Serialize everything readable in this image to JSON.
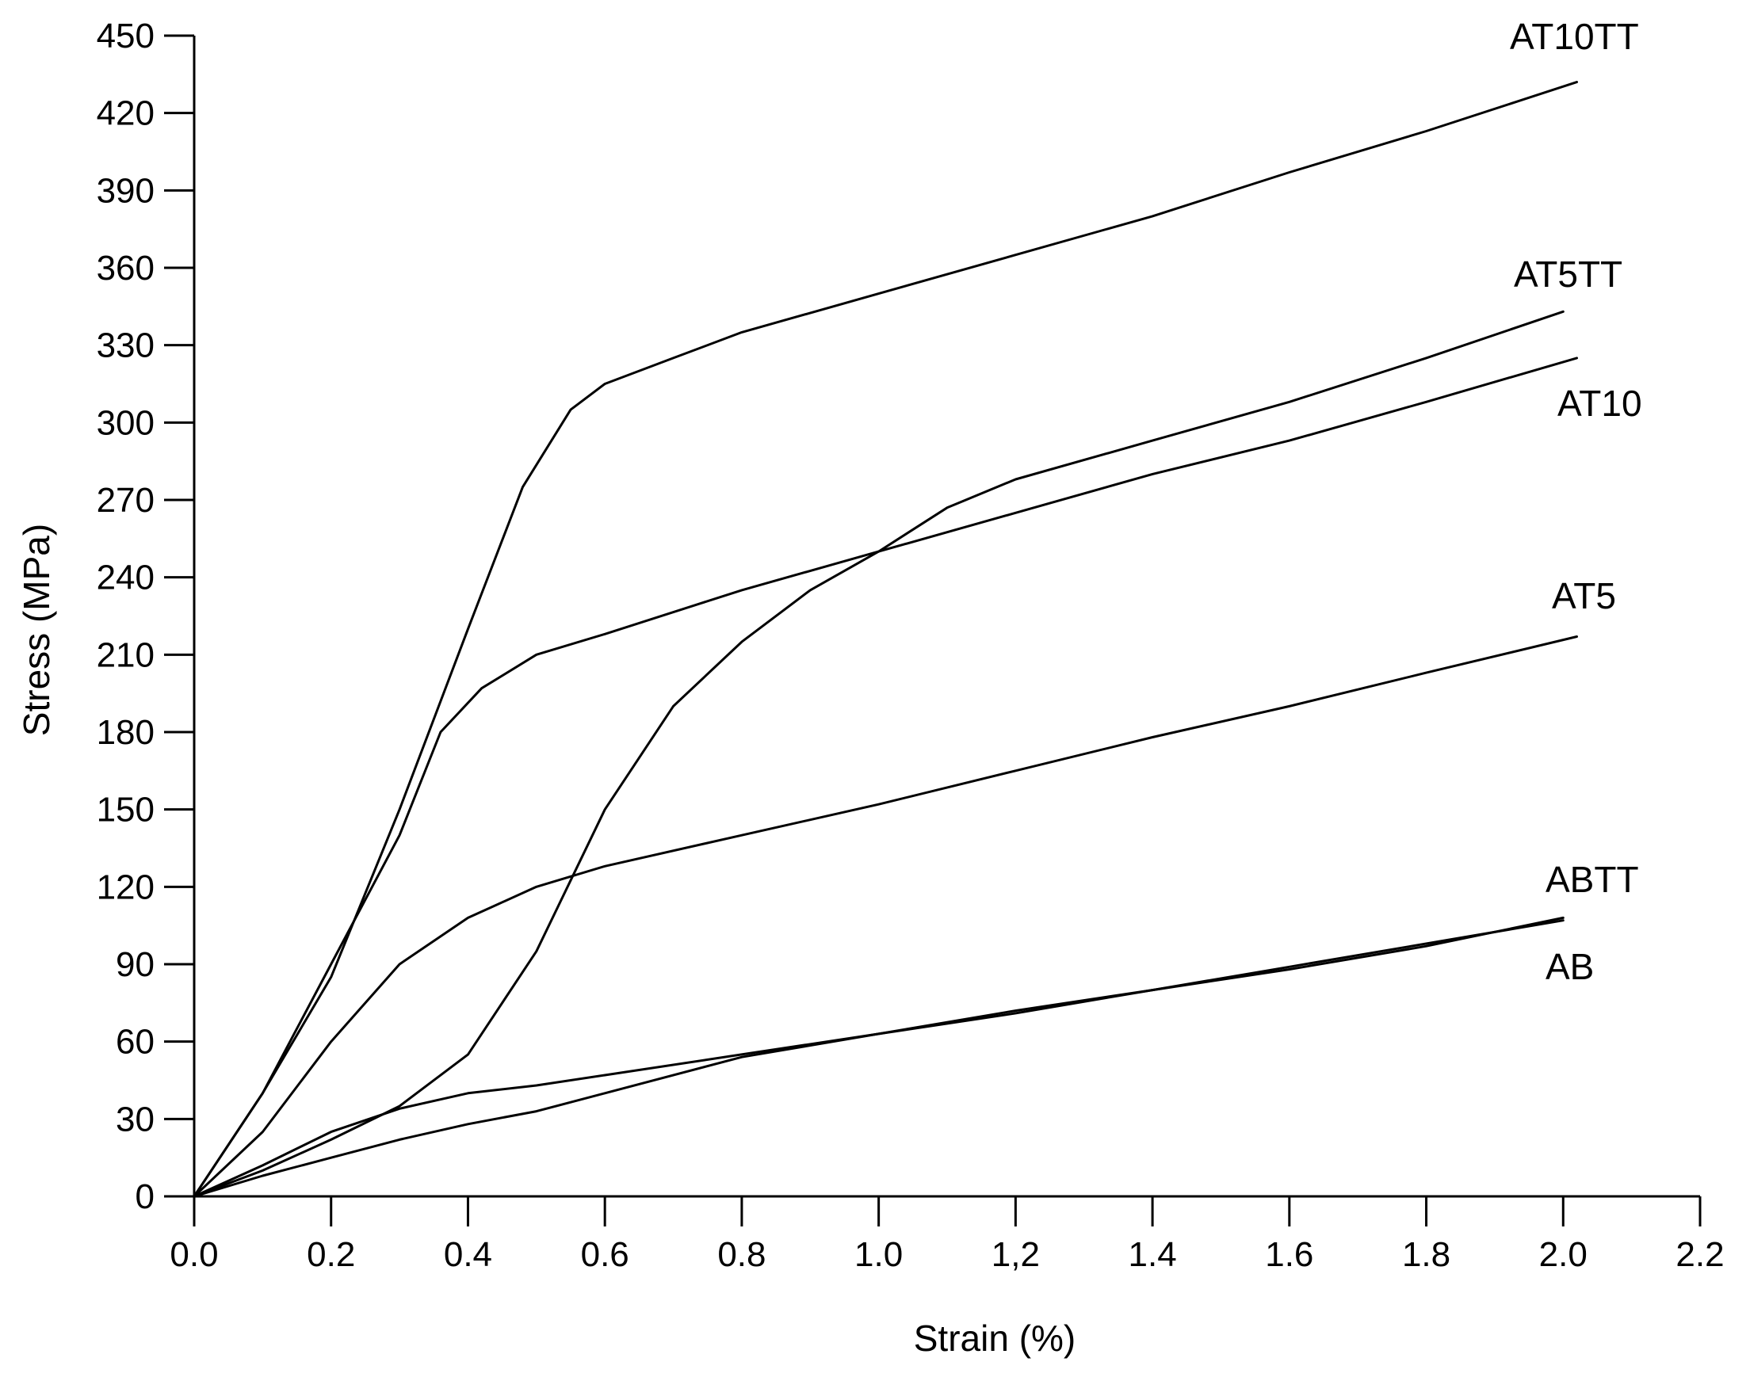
{
  "chart_data": {
    "type": "line",
    "title": "",
    "xlabel": "Strain (%)",
    "ylabel": "Stress (MPa)",
    "xlim": [
      0.0,
      2.2
    ],
    "ylim": [
      0,
      450
    ],
    "grid": false,
    "legend": "none (series labelled at line ends)",
    "line_color": "#000000",
    "x_ticks": [
      {
        "value": 0.0,
        "label": "0.0"
      },
      {
        "value": 0.2,
        "label": "0.2"
      },
      {
        "value": 0.4,
        "label": "0.4"
      },
      {
        "value": 0.6,
        "label": "0.6"
      },
      {
        "value": 0.8,
        "label": "0.8"
      },
      {
        "value": 1.0,
        "label": "1.0"
      },
      {
        "value": 1.2,
        "label": "1,2"
      },
      {
        "value": 1.4,
        "label": "1.4"
      },
      {
        "value": 1.6,
        "label": "1.6"
      },
      {
        "value": 1.8,
        "label": "1.8"
      },
      {
        "value": 2.0,
        "label": "2.0"
      },
      {
        "value": 2.2,
        "label": "2.2"
      }
    ],
    "y_ticks": [
      {
        "value": 0,
        "label": "0"
      },
      {
        "value": 30,
        "label": "30"
      },
      {
        "value": 60,
        "label": "60"
      },
      {
        "value": 90,
        "label": "90"
      },
      {
        "value": 120,
        "label": "120"
      },
      {
        "value": 150,
        "label": "150"
      },
      {
        "value": 180,
        "label": "180"
      },
      {
        "value": 210,
        "label": "210"
      },
      {
        "value": 240,
        "label": "240"
      },
      {
        "value": 270,
        "label": "270"
      },
      {
        "value": 300,
        "label": "300"
      },
      {
        "value": 330,
        "label": "330"
      },
      {
        "value": 360,
        "label": "360"
      },
      {
        "value": 390,
        "label": "390"
      },
      {
        "value": 420,
        "label": "420"
      },
      {
        "value": 450,
        "label": "450"
      }
    ],
    "series": [
      {
        "name": "AT10TT",
        "x": [
          0.0,
          0.1,
          0.2,
          0.3,
          0.4,
          0.48,
          0.55,
          0.6,
          0.7,
          0.8,
          1.0,
          1.2,
          1.4,
          1.6,
          1.8,
          2.02
        ],
        "y": [
          0,
          40,
          85,
          150,
          220,
          275,
          305,
          315,
          325,
          335,
          350,
          365,
          380,
          397,
          413,
          432
        ]
      },
      {
        "name": "AT5TT",
        "x": [
          0.0,
          0.1,
          0.2,
          0.3,
          0.4,
          0.5,
          0.6,
          0.7,
          0.8,
          0.9,
          1.0,
          1.1,
          1.2,
          1.4,
          1.6,
          1.8,
          2.0
        ],
        "y": [
          0,
          10,
          22,
          35,
          55,
          95,
          150,
          190,
          215,
          235,
          250,
          267,
          278,
          293,
          308,
          325,
          343
        ]
      },
      {
        "name": "AT10",
        "x": [
          0.0,
          0.1,
          0.2,
          0.3,
          0.36,
          0.42,
          0.5,
          0.6,
          0.8,
          1.0,
          1.2,
          1.4,
          1.6,
          1.8,
          2.02
        ],
        "y": [
          0,
          40,
          90,
          140,
          180,
          197,
          210,
          218,
          235,
          250,
          265,
          280,
          293,
          308,
          325
        ]
      },
      {
        "name": "AT5",
        "x": [
          0.0,
          0.1,
          0.2,
          0.3,
          0.4,
          0.5,
          0.6,
          0.8,
          1.0,
          1.2,
          1.4,
          1.6,
          1.8,
          2.02
        ],
        "y": [
          0,
          25,
          60,
          90,
          108,
          120,
          128,
          140,
          152,
          165,
          178,
          190,
          203,
          217
        ]
      },
      {
        "name": "ABTT",
        "x": [
          0.0,
          0.1,
          0.2,
          0.3,
          0.4,
          0.5,
          0.6,
          0.8,
          1.0,
          1.2,
          1.4,
          1.6,
          1.8,
          2.0
        ],
        "y": [
          0,
          12,
          25,
          34,
          40,
          43,
          47,
          55,
          63,
          72,
          80,
          88,
          97,
          108
        ]
      },
      {
        "name": "AB",
        "x": [
          0.0,
          0.1,
          0.2,
          0.3,
          0.4,
          0.5,
          0.6,
          0.8,
          1.0,
          1.2,
          1.4,
          1.6,
          1.8,
          2.0
        ],
        "y": [
          0,
          8,
          15,
          22,
          28,
          33,
          40,
          54,
          63,
          71,
          80,
          89,
          98,
          107
        ]
      }
    ]
  }
}
